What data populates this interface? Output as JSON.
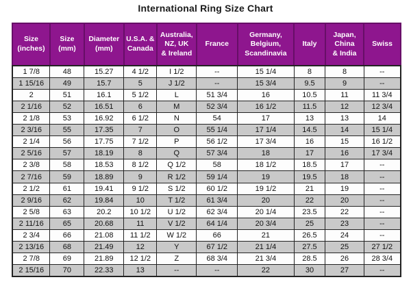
{
  "title": "International Ring Size Chart",
  "colors": {
    "header_bg": "#8e168e",
    "header_text": "#ffffff",
    "header_divider": "#670e67",
    "grid_line": "#222222",
    "row_alt_bg": "#c9c9c9",
    "row_bg": "#fdfdfd",
    "title_text": "#1a1a1a"
  },
  "chart_data": {
    "type": "table",
    "title": "International Ring Size Chart",
    "legend_position": "none",
    "grid": true,
    "columns": [
      "Size\n(inches)",
      "Size\n(mm)",
      "Diameter\n(mm)",
      "U.S.A. &\nCanada",
      "Australia,\nNZ, UK\n& Ireland",
      "France",
      "Germany,\nBelgium,\nScandinavia",
      "Italy",
      "Japan,\nChina\n& India",
      "Swiss"
    ],
    "rows": [
      [
        "1 7/8",
        "48",
        "15.27",
        "4 1/2",
        "I 1/2",
        "--",
        "15 1/4",
        "8",
        "8",
        "--"
      ],
      [
        "1 15/16",
        "49",
        "15.7",
        "5",
        "J 1/2",
        "--",
        "15 3/4",
        "9.5",
        "9",
        "--"
      ],
      [
        "2",
        "51",
        "16.1",
        "5 1/2",
        "L",
        "51 3/4",
        "16",
        "10.5",
        "11",
        "11 3/4"
      ],
      [
        "2 1/16",
        "52",
        "16.51",
        "6",
        "M",
        "52 3/4",
        "16 1/2",
        "11.5",
        "12",
        "12 3/4"
      ],
      [
        "2 1/8",
        "53",
        "16.92",
        "6 1/2",
        "N",
        "54",
        "17",
        "13",
        "13",
        "14"
      ],
      [
        "2 3/16",
        "55",
        "17.35",
        "7",
        "O",
        "55 1/4",
        "17 1/4",
        "14.5",
        "14",
        "15 1/4"
      ],
      [
        "2 1/4",
        "56",
        "17.75",
        "7 1/2",
        "P",
        "56 1/2",
        "17 3/4",
        "16",
        "15",
        "16 1/2"
      ],
      [
        "2 5/16",
        "57",
        "18.19",
        "8",
        "Q",
        "57 3/4",
        "18",
        "17",
        "16",
        "17 3/4"
      ],
      [
        "2 3/8",
        "58",
        "18.53",
        "8 1/2",
        "Q 1/2",
        "58",
        "18 1/2",
        "18.5",
        "17",
        "--"
      ],
      [
        "2 7/16",
        "59",
        "18.89",
        "9",
        "R 1/2",
        "59 1/4",
        "19",
        "19.5",
        "18",
        "--"
      ],
      [
        "2 1/2",
        "61",
        "19.41",
        "9 1/2",
        "S 1/2",
        "60 1/2",
        "19 1/2",
        "21",
        "19",
        "--"
      ],
      [
        "2 9/16",
        "62",
        "19.84",
        "10",
        "T 1/2",
        "61 3/4",
        "20",
        "22",
        "20",
        "--"
      ],
      [
        "2 5/8",
        "63",
        "20.2",
        "10 1/2",
        "U 1/2",
        "62 3/4",
        "20 1/4",
        "23.5",
        "22",
        "--"
      ],
      [
        "2 11/16",
        "65",
        "20.68",
        "11",
        "V 1/2",
        "64 1/4",
        "20 3/4",
        "25",
        "23",
        "--"
      ],
      [
        "2 3/4",
        "66",
        "21.08",
        "11 1/2",
        "W 1/2",
        "66",
        "21",
        "26.5",
        "24",
        "--"
      ],
      [
        "2 13/16",
        "68",
        "21.49",
        "12",
        "Y",
        "67 1/2",
        "21 1/4",
        "27.5",
        "25",
        "27 1/2"
      ],
      [
        "2 7/8",
        "69",
        "21.89",
        "12 1/2",
        "Z",
        "68 3/4",
        "21 3/4",
        "28.5",
        "26",
        "28 3/4"
      ],
      [
        "2 15/16",
        "70",
        "22.33",
        "13",
        "--",
        "--",
        "22",
        "30",
        "27",
        "--"
      ]
    ]
  }
}
